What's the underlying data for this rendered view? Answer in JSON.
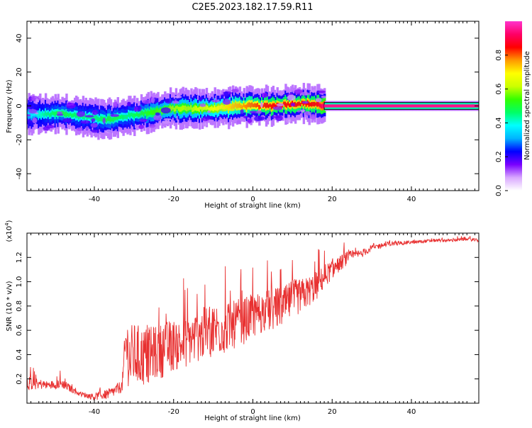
{
  "title": "C2E5.2023.182.17.59.R11",
  "chart_data": [
    {
      "type": "heatmap",
      "xlabel": "Height of straight line (km)",
      "ylabel": "Frequency (Hz)",
      "xlim": [
        -57,
        57
      ],
      "ylim": [
        -50,
        50
      ],
      "xticks": [
        -40,
        -20,
        0,
        20,
        40
      ],
      "yticks": [
        -40,
        -20,
        0,
        20,
        40
      ],
      "colorbar": {
        "label": "Normalized spectral amplitude",
        "range": [
          0.0,
          1.0
        ],
        "ticks": [
          "0.0",
          "0.2",
          "0.4",
          "0.6",
          "0.8"
        ],
        "colors": [
          "#ffffff",
          "#d9a8ff",
          "#7a00ff",
          "#0000ff",
          "#00b4ff",
          "#00ffff",
          "#00ff66",
          "#33ff00",
          "#ccff00",
          "#ffff00",
          "#ff9900",
          "#ff0000",
          "#ff0066",
          "#ff33cc"
        ]
      },
      "ridge": {
        "x": [
          -57,
          -52,
          -48,
          -44,
          -40,
          -36,
          -32,
          -28,
          -24,
          -20,
          -16,
          -12,
          -8,
          -4,
          0,
          4,
          8,
          12,
          16,
          18,
          57
        ],
        "y": [
          -5,
          -5,
          -4.5,
          -6,
          -7,
          -8,
          -6,
          -4.5,
          -3,
          -1.5,
          -1.5,
          -1.5,
          -1,
          0,
          0,
          0,
          1,
          1.5,
          1,
          0,
          0
        ]
      },
      "amplitude": [
        0.35,
        0.45,
        0.5,
        0.45,
        0.45,
        0.5,
        0.45,
        0.5,
        0.55,
        0.6,
        0.6,
        0.65,
        0.7,
        0.75,
        0.8,
        0.85,
        0.85,
        0.85,
        0.85,
        0.95,
        0.95
      ]
    },
    {
      "type": "line",
      "xlabel": "Height of straight line (km)",
      "ylabel": "SNR (10 * v/v)",
      "yscale_label": "(x10",
      "yscale_exp": "4",
      "yscale_close": ")",
      "xlim": [
        -57,
        57
      ],
      "ylim": [
        0.0,
        1.4
      ],
      "xticks": [
        -40,
        -20,
        0,
        20,
        40
      ],
      "yticks": [
        "0.2",
        "0.4",
        "0.6",
        "0.8",
        "1.0",
        "1.2"
      ],
      "series": [
        {
          "color": "#e83030",
          "x": [
            -57,
            -52,
            -48,
            -44,
            -40,
            -36,
            -33,
            -32,
            -31,
            -30,
            -28,
            -26,
            -24,
            -22,
            -20,
            -18,
            -16,
            -14,
            -12,
            -10,
            -8,
            -6,
            -4,
            -2,
            0,
            2,
            4,
            6,
            8,
            10,
            12,
            14,
            16,
            18,
            20,
            22,
            24,
            26,
            28,
            30,
            34,
            38,
            42,
            46,
            50,
            54,
            57
          ],
          "y": [
            0.17,
            0.15,
            0.16,
            0.08,
            0.05,
            0.08,
            0.14,
            0.5,
            0.35,
            0.4,
            0.38,
            0.4,
            0.42,
            0.45,
            0.48,
            0.48,
            0.52,
            0.55,
            0.58,
            0.6,
            0.62,
            0.62,
            0.66,
            0.68,
            0.72,
            0.75,
            0.76,
            0.78,
            0.8,
            0.86,
            0.88,
            0.92,
            0.96,
            1.04,
            1.1,
            1.15,
            1.2,
            1.22,
            1.24,
            1.28,
            1.31,
            1.32,
            1.33,
            1.34,
            1.34,
            1.35,
            1.34
          ],
          "noise": [
            0.1,
            0.05,
            0.06,
            0.03,
            0.04,
            0.07,
            0.08,
            0.4,
            0.45,
            0.4,
            0.4,
            0.35,
            0.35,
            0.35,
            0.33,
            0.32,
            0.32,
            0.33,
            0.34,
            0.35,
            0.35,
            0.32,
            0.3,
            0.3,
            0.28,
            0.28,
            0.27,
            0.27,
            0.25,
            0.25,
            0.22,
            0.2,
            0.18,
            0.15,
            0.12,
            0.1,
            0.08,
            0.06,
            0.05,
            0.04,
            0.03,
            0.025,
            0.02,
            0.02,
            0.02,
            0.02,
            0.02
          ]
        }
      ]
    }
  ]
}
